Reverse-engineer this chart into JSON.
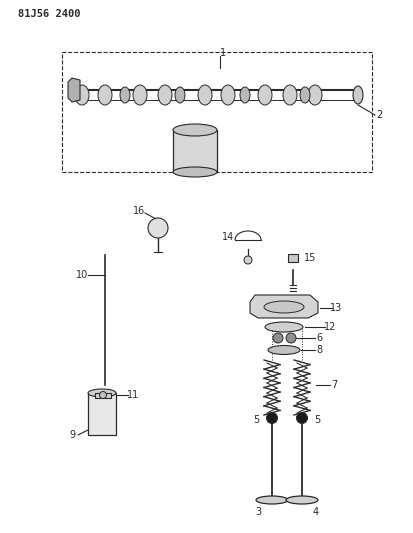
{
  "title": "81J56 2400",
  "bg_color": "#ffffff",
  "line_color": "#2a2a2a",
  "font_size": 7,
  "fig_width": 4.13,
  "fig_height": 5.33,
  "dpi": 100
}
